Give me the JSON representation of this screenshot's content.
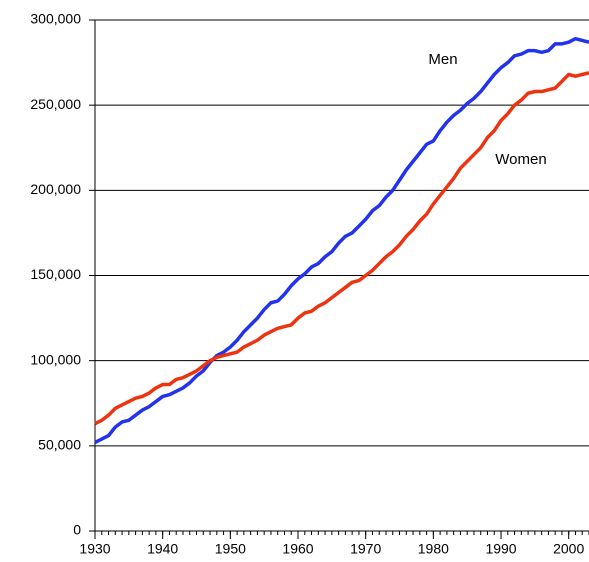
{
  "chart_data": {
    "type": "line",
    "x": [
      1930,
      1931,
      1932,
      1933,
      1934,
      1935,
      1936,
      1937,
      1938,
      1939,
      1940,
      1941,
      1942,
      1943,
      1944,
      1945,
      1946,
      1947,
      1948,
      1949,
      1950,
      1951,
      1952,
      1953,
      1954,
      1955,
      1956,
      1957,
      1958,
      1959,
      1960,
      1961,
      1962,
      1963,
      1964,
      1965,
      1966,
      1967,
      1968,
      1969,
      1970,
      1971,
      1972,
      1973,
      1974,
      1975,
      1976,
      1977,
      1978,
      1979,
      1980,
      1981,
      1982,
      1983,
      1984,
      1985,
      1986,
      1987,
      1988,
      1989,
      1990,
      1991,
      1992,
      1993,
      1994,
      1995,
      1996,
      1997,
      1998,
      1999,
      2000,
      2001,
      2002,
      2003
    ],
    "series": [
      {
        "name": "Men",
        "color": "#2233ee",
        "values": [
          52000,
          54000,
          56000,
          61000,
          64000,
          65000,
          68000,
          71000,
          73000,
          76000,
          79000,
          80000,
          82000,
          84000,
          87000,
          91000,
          94000,
          99000,
          103000,
          105000,
          108000,
          112000,
          117000,
          121000,
          125000,
          130000,
          134000,
          135000,
          139000,
          144000,
          148000,
          151000,
          155000,
          157000,
          161000,
          164000,
          169000,
          173000,
          175000,
          179000,
          183000,
          188000,
          191000,
          196000,
          200000,
          206000,
          212000,
          217000,
          222000,
          227000,
          229000,
          235000,
          240000,
          244000,
          247000,
          251000,
          254000,
          258000,
          263000,
          268000,
          272000,
          275000,
          279000,
          280000,
          282000,
          282000,
          281000,
          282000,
          286000,
          286000,
          287000,
          289000,
          288000,
          287000
        ]
      },
      {
        "name": "Women",
        "color": "#ee3311",
        "values": [
          63000,
          65000,
          68000,
          72000,
          74000,
          76000,
          78000,
          79000,
          81000,
          84000,
          86000,
          86000,
          89000,
          90000,
          92000,
          94000,
          97000,
          100000,
          102000,
          103000,
          104000,
          105000,
          108000,
          110000,
          112000,
          115000,
          117000,
          119000,
          120000,
          121000,
          125000,
          128000,
          129000,
          132000,
          134000,
          137000,
          140000,
          143000,
          146000,
          147000,
          150000,
          153000,
          157000,
          161000,
          164000,
          168000,
          173000,
          177000,
          182000,
          186000,
          192000,
          197000,
          202000,
          207000,
          213000,
          217000,
          221000,
          225000,
          231000,
          235000,
          241000,
          245000,
          250000,
          253000,
          257000,
          258000,
          258000,
          259000,
          260000,
          264000,
          268000,
          267000,
          268000,
          269000
        ]
      }
    ],
    "xlim": [
      1930,
      2003
    ],
    "xticks": [
      1930,
      1940,
      1950,
      1960,
      1970,
      1980,
      1990,
      2000
    ],
    "ylim": [
      0,
      300000
    ],
    "yticks": [
      0,
      {
        "value": 50000,
        "label": "50,000"
      },
      {
        "value": 100000,
        "label": "100,000"
      },
      {
        "value": 150000,
        "label": "150,000"
      },
      {
        "value": 200000,
        "label": "200,000"
      },
      {
        "value": 250000,
        "label": "250,000"
      },
      {
        "value": 300000,
        "label": "300,000"
      }
    ],
    "grid": true
  }
}
